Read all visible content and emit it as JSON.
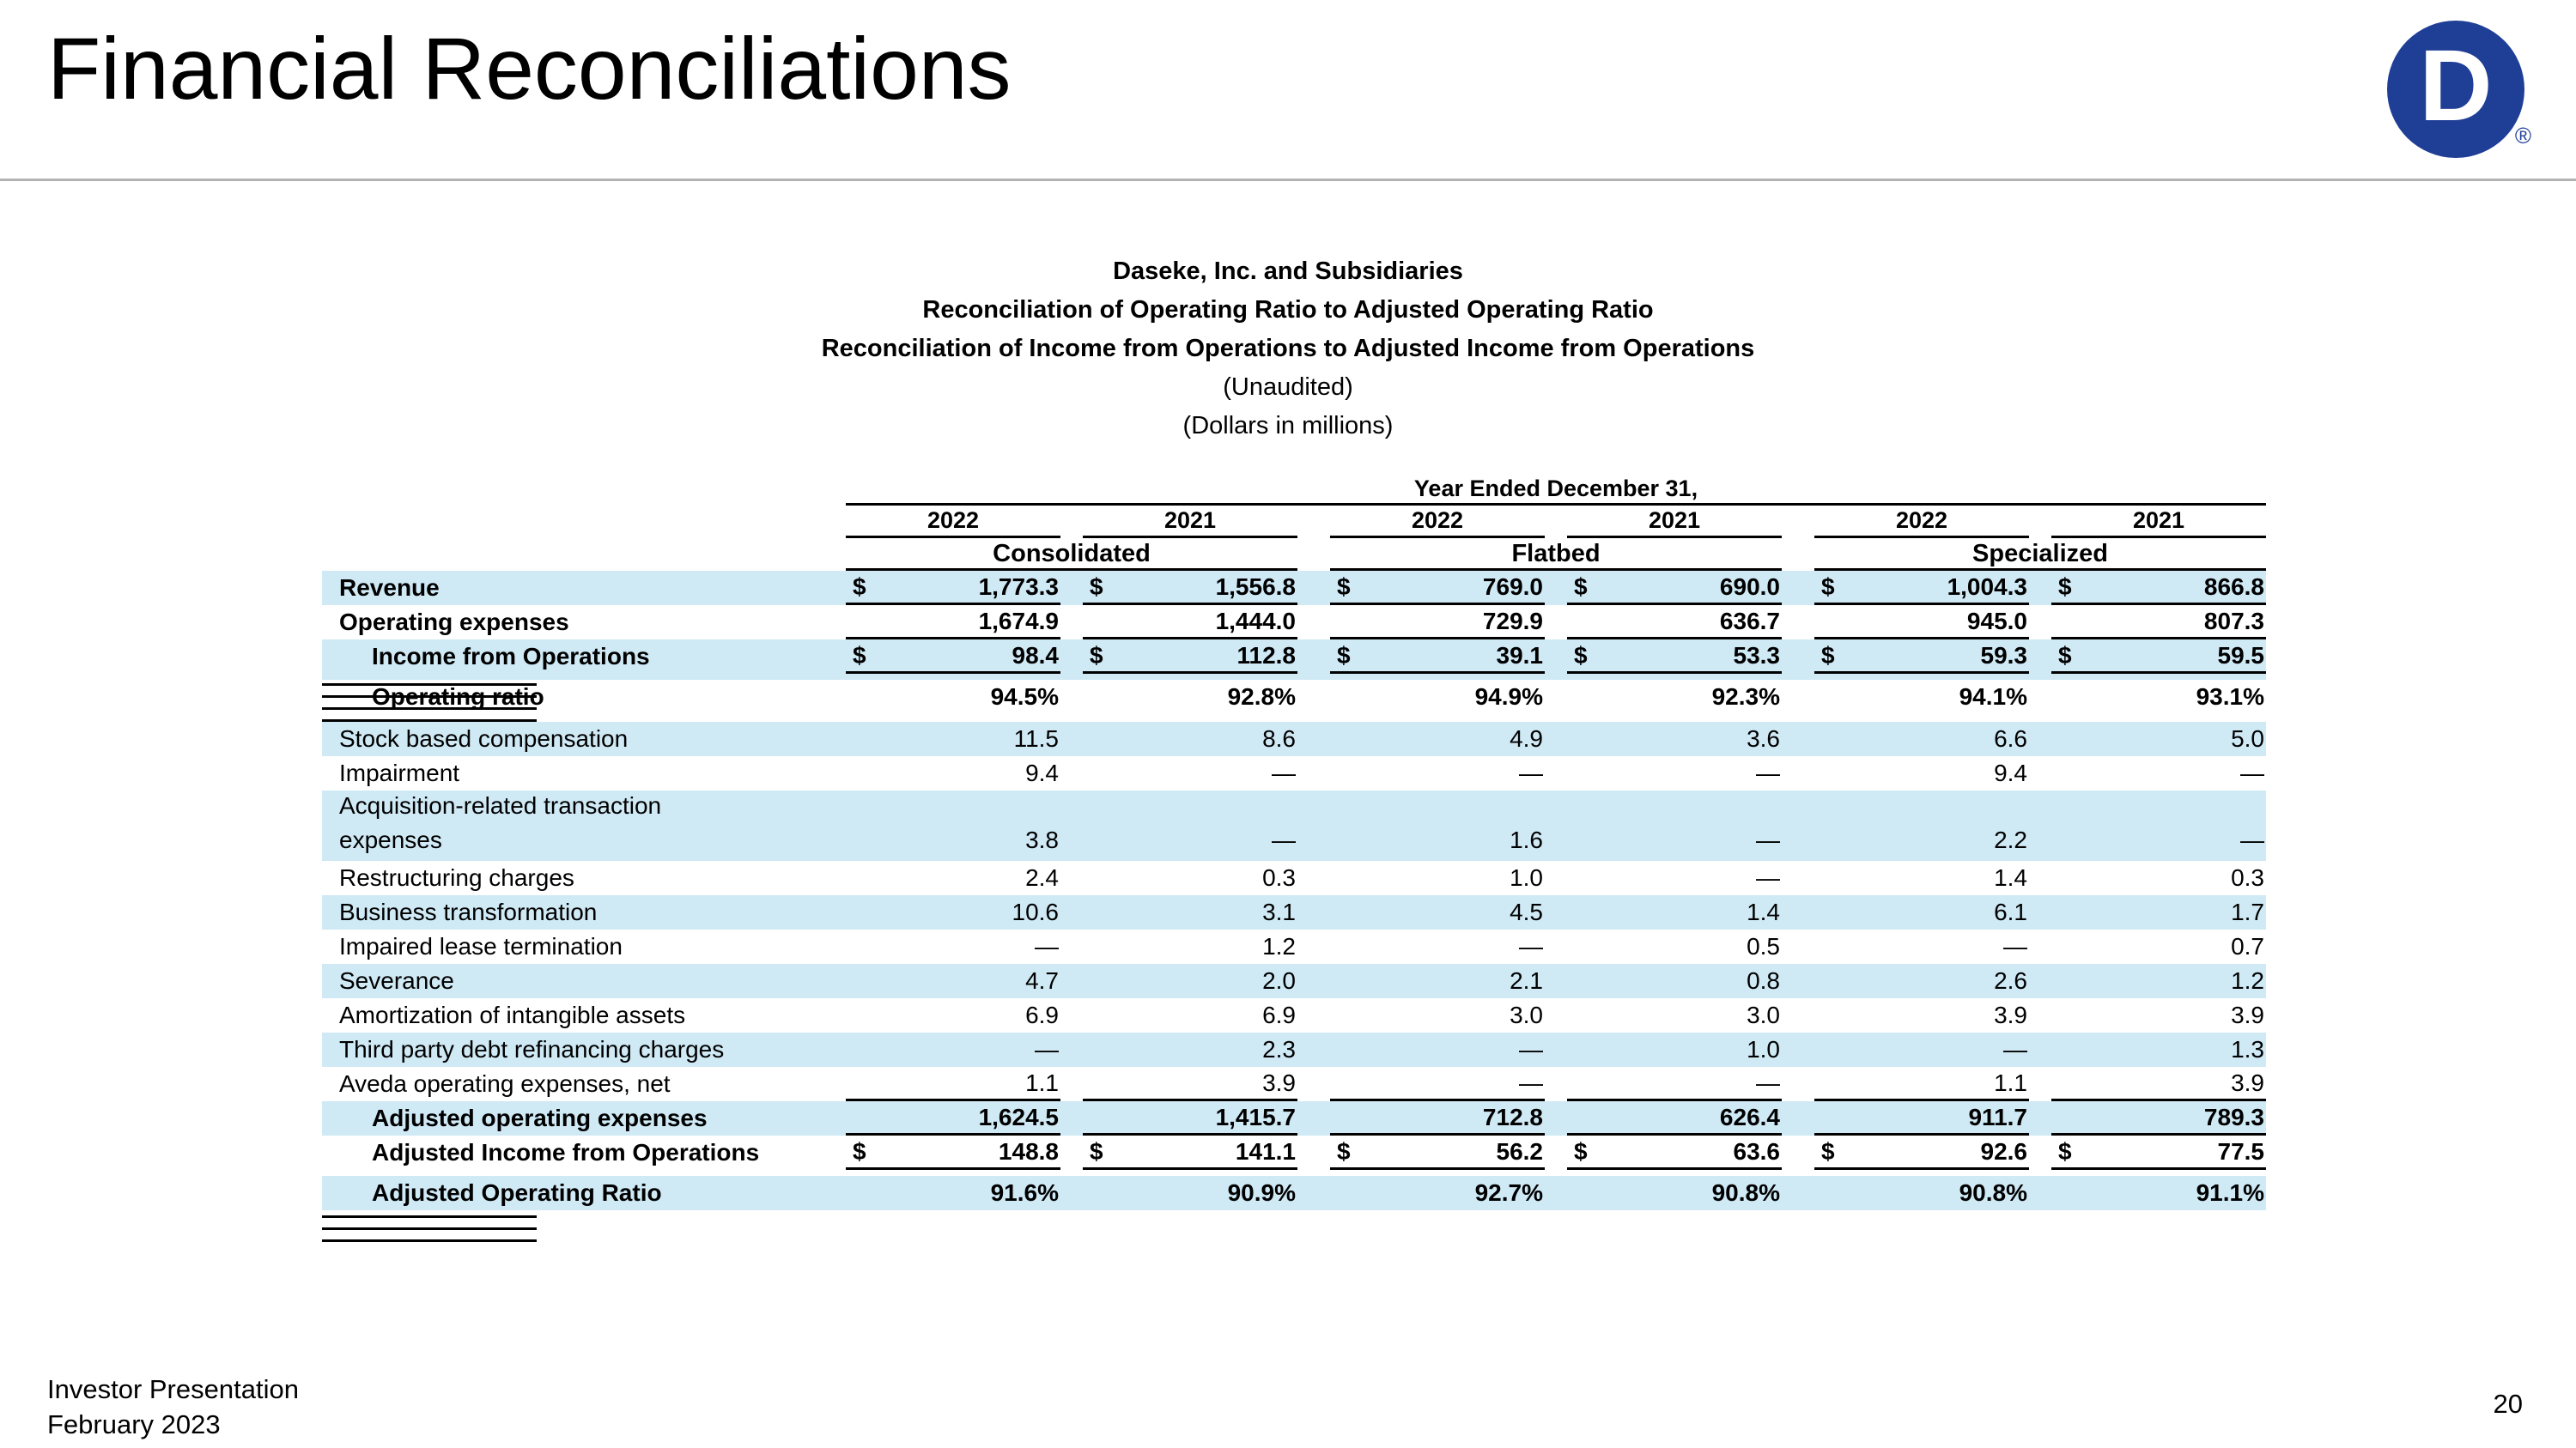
{
  "slide": {
    "title": "Financial Reconciliations",
    "footer_line1": "Investor Presentation",
    "footer_line2": "February 2023",
    "page_number": "20",
    "logo_letter": "D",
    "logo_mark": "®"
  },
  "colors": {
    "row_highlight_blue": "#cfe9f5",
    "logo_blue": "#1f3e96",
    "divider_gray": "#b3b3b3",
    "rule_black": "#000000"
  },
  "table": {
    "heading_lines": [
      {
        "text": "Daseke, Inc. and Subsidiaries",
        "bold": true
      },
      {
        "text": "Reconciliation of Operating Ratio to Adjusted Operating Ratio",
        "bold": true
      },
      {
        "text": "Reconciliation of Income from Operations to Adjusted Income from Operations",
        "bold": true
      },
      {
        "text": "(Unaudited)",
        "bold": false
      },
      {
        "text": "(Dollars in millions)",
        "bold": false
      }
    ],
    "period_header": "Year Ended December 31,",
    "currency_symbol": "$",
    "year_columns": [
      "2022",
      "2021",
      "2022",
      "2021",
      "2022",
      "2021"
    ],
    "groups": [
      "Consolidated",
      "Flatbed",
      "Specialized"
    ],
    "rows": [
      {
        "label": "Revenue",
        "label2": null,
        "bold": true,
        "indent": false,
        "shaded": true,
        "dollar": true,
        "rule": "single",
        "gap_before": false,
        "values": [
          "1,773.3",
          "1,556.8",
          "769.0",
          "690.0",
          "1,004.3",
          "866.8"
        ]
      },
      {
        "label": "Operating expenses",
        "label2": null,
        "bold": true,
        "indent": false,
        "shaded": false,
        "dollar": false,
        "rule": "single",
        "gap_before": false,
        "values": [
          "1,674.9",
          "1,444.0",
          "729.9",
          "636.7",
          "945.0",
          "807.3"
        ]
      },
      {
        "label": "Income from Operations",
        "label2": null,
        "bold": true,
        "indent": true,
        "shaded": true,
        "dollar": true,
        "rule": "double",
        "gap_before": false,
        "values": [
          "98.4",
          "112.8",
          "39.1",
          "53.3",
          "59.3",
          "59.5"
        ]
      },
      {
        "label": "Operating ratio",
        "label2": null,
        "bold": true,
        "indent": true,
        "shaded": false,
        "dollar": false,
        "rule": "none",
        "gap_before": false,
        "values": [
          "94.5%",
          "92.8%",
          "94.9%",
          "92.3%",
          "94.1%",
          "93.1%"
        ]
      },
      {
        "label": "Stock based compensation",
        "label2": null,
        "bold": false,
        "indent": false,
        "shaded": true,
        "dollar": false,
        "rule": "none",
        "gap_before": true,
        "values": [
          "11.5",
          "8.6",
          "4.9",
          "3.6",
          "6.6",
          "5.0"
        ]
      },
      {
        "label": "Impairment",
        "label2": null,
        "bold": false,
        "indent": false,
        "shaded": false,
        "dollar": false,
        "rule": "none",
        "gap_before": false,
        "values": [
          "9.4",
          "—",
          "—",
          "—",
          "9.4",
          "—"
        ]
      },
      {
        "label": "Acquisition-related transaction",
        "label2": "expenses",
        "bold": false,
        "indent": false,
        "shaded": true,
        "dollar": false,
        "rule": "none",
        "gap_before": false,
        "values": [
          "3.8",
          "—",
          "1.6",
          "—",
          "2.2",
          "—"
        ]
      },
      {
        "label": "Restructuring charges",
        "label2": null,
        "bold": false,
        "indent": false,
        "shaded": false,
        "dollar": false,
        "rule": "none",
        "gap_before": false,
        "values": [
          "2.4",
          "0.3",
          "1.0",
          "—",
          "1.4",
          "0.3"
        ]
      },
      {
        "label": "Business transformation",
        "label2": null,
        "bold": false,
        "indent": false,
        "shaded": true,
        "dollar": false,
        "rule": "none",
        "gap_before": false,
        "values": [
          "10.6",
          "3.1",
          "4.5",
          "1.4",
          "6.1",
          "1.7"
        ]
      },
      {
        "label": "Impaired lease termination",
        "label2": null,
        "bold": false,
        "indent": false,
        "shaded": false,
        "dollar": false,
        "rule": "none",
        "gap_before": false,
        "values": [
          "—",
          "1.2",
          "—",
          "0.5",
          "—",
          "0.7"
        ]
      },
      {
        "label": "Severance",
        "label2": null,
        "bold": false,
        "indent": false,
        "shaded": true,
        "dollar": false,
        "rule": "none",
        "gap_before": false,
        "values": [
          "4.7",
          "2.0",
          "2.1",
          "0.8",
          "2.6",
          "1.2"
        ]
      },
      {
        "label": "Amortization of intangible assets",
        "label2": null,
        "bold": false,
        "indent": false,
        "shaded": false,
        "dollar": false,
        "rule": "none",
        "gap_before": false,
        "values": [
          "6.9",
          "6.9",
          "3.0",
          "3.0",
          "3.9",
          "3.9"
        ]
      },
      {
        "label": "Third party debt refinancing charges",
        "label2": null,
        "bold": false,
        "indent": false,
        "shaded": true,
        "dollar": false,
        "rule": "none",
        "gap_before": false,
        "values": [
          "—",
          "2.3",
          "—",
          "1.0",
          "—",
          "1.3"
        ]
      },
      {
        "label": "Aveda operating expenses, net",
        "label2": null,
        "bold": false,
        "indent": false,
        "shaded": false,
        "dollar": false,
        "rule": "single",
        "gap_before": false,
        "values": [
          "1.1",
          "3.9",
          "—",
          "—",
          "1.1",
          "3.9"
        ]
      },
      {
        "label": "Adjusted operating expenses",
        "label2": null,
        "bold": true,
        "indent": true,
        "shaded": true,
        "dollar": false,
        "rule": "single",
        "gap_before": false,
        "values": [
          "1,624.5",
          "1,415.7",
          "712.8",
          "626.4",
          "911.7",
          "789.3"
        ]
      },
      {
        "label": "Adjusted Income from Operations",
        "label2": null,
        "bold": true,
        "indent": true,
        "shaded": false,
        "dollar": true,
        "rule": "double",
        "gap_before": false,
        "values": [
          "148.8",
          "141.1",
          "56.2",
          "63.6",
          "92.6",
          "77.5"
        ]
      },
      {
        "label": "Adjusted Operating Ratio",
        "label2": null,
        "bold": true,
        "indent": true,
        "shaded": true,
        "dollar": false,
        "rule": "none",
        "gap_before": false,
        "values": [
          "91.6%",
          "90.9%",
          "92.7%",
          "90.8%",
          "90.8%",
          "91.1%"
        ]
      }
    ]
  }
}
